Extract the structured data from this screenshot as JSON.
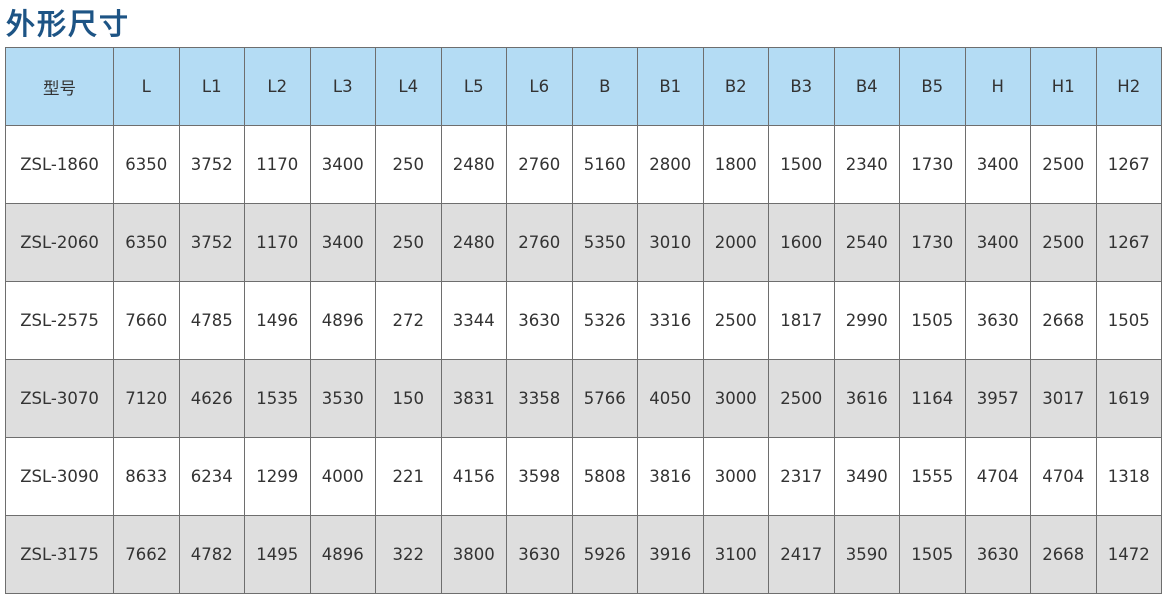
{
  "title": "外形尺寸",
  "colors": {
    "title": "#1d5485",
    "header_bg": "#b4dcf4",
    "alt_row_bg": "#dedede"
  },
  "headers": [
    "型号",
    "L",
    "L1",
    "L2",
    "L3",
    "L4",
    "L5",
    "L6",
    "B",
    "B1",
    "B2",
    "B3",
    "B4",
    "B5",
    "H",
    "H1",
    "H2"
  ],
  "rows": [
    [
      "ZSL-1860",
      "6350",
      "3752",
      "1170",
      "3400",
      "250",
      "2480",
      "2760",
      "5160",
      "2800",
      "1800",
      "1500",
      "2340",
      "1730",
      "3400",
      "2500",
      "1267"
    ],
    [
      "ZSL-2060",
      "6350",
      "3752",
      "1170",
      "3400",
      "250",
      "2480",
      "2760",
      "5350",
      "3010",
      "2000",
      "1600",
      "2540",
      "1730",
      "3400",
      "2500",
      "1267"
    ],
    [
      "ZSL-2575",
      "7660",
      "4785",
      "1496",
      "4896",
      "272",
      "3344",
      "3630",
      "5326",
      "3316",
      "2500",
      "1817",
      "2990",
      "1505",
      "3630",
      "2668",
      "1505"
    ],
    [
      "ZSL-3070",
      "7120",
      "4626",
      "1535",
      "3530",
      "150",
      "3831",
      "3358",
      "5766",
      "4050",
      "3000",
      "2500",
      "3616",
      "1164",
      "3957",
      "3017",
      "1619"
    ],
    [
      "ZSL-3090",
      "8633",
      "6234",
      "1299",
      "4000",
      "221",
      "4156",
      "3598",
      "5808",
      "3816",
      "3000",
      "2317",
      "3490",
      "1555",
      "4704",
      "4704",
      "1318"
    ],
    [
      "ZSL-3175",
      "7662",
      "4782",
      "1495",
      "4896",
      "322",
      "3800",
      "3630",
      "5926",
      "3916",
      "3100",
      "2417",
      "3590",
      "1505",
      "3630",
      "2668",
      "1472"
    ]
  ]
}
